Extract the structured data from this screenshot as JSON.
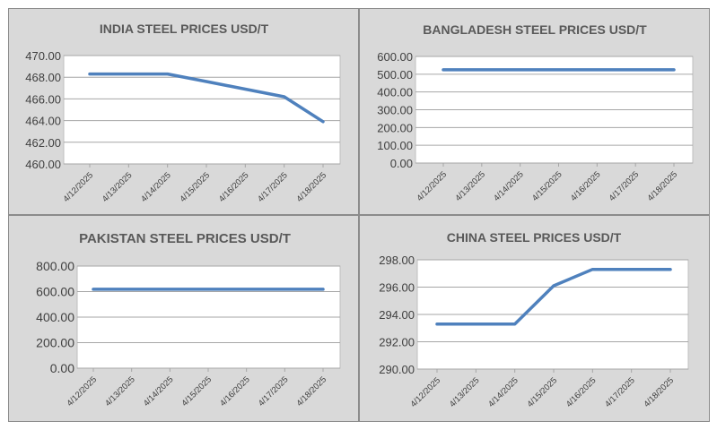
{
  "chart_data": [
    {
      "type": "line",
      "title": "INDIA STEEL PRICES USD/T",
      "categories": [
        "4/12/2025",
        "4/13/2025",
        "4/14/2025",
        "4/15/2025",
        "4/16/2025",
        "4/17/2025",
        "4/18/2025"
      ],
      "series": [
        {
          "values": [
            468.3,
            468.3,
            468.3,
            467.6,
            466.9,
            466.2,
            463.9
          ]
        }
      ],
      "ylim": [
        460,
        470
      ],
      "yticks": [
        "460.00",
        "462.00",
        "464.00",
        "466.00",
        "468.00",
        "470.00"
      ],
      "grid": true,
      "color": "#4f81bd"
    },
    {
      "type": "line",
      "title": "BANGLADESH STEEL PRICES USD/T",
      "categories": [
        "4/12/2025",
        "4/13/2025",
        "4/14/2025",
        "4/15/2025",
        "4/16/2025",
        "4/17/2025",
        "4/18/2025"
      ],
      "series": [
        {
          "values": [
            525,
            525,
            525,
            525,
            525,
            525,
            525
          ]
        }
      ],
      "ylim": [
        0,
        600
      ],
      "yticks": [
        "0.00",
        "100.00",
        "200.00",
        "300.00",
        "400.00",
        "500.00",
        "600.00"
      ],
      "grid": true,
      "color": "#4f81bd"
    },
    {
      "type": "line",
      "title": "PAKISTAN STEEL PRICES USD/T",
      "categories": [
        "4/12/2025",
        "4/13/2025",
        "4/14/2025",
        "4/15/2025",
        "4/16/2025",
        "4/17/2025",
        "4/18/2025"
      ],
      "series": [
        {
          "values": [
            618,
            618,
            618,
            618,
            618,
            618,
            618
          ]
        }
      ],
      "ylim": [
        0,
        800
      ],
      "yticks": [
        "0.00",
        "200.00",
        "400.00",
        "600.00",
        "800.00"
      ],
      "grid": true,
      "color": "#4f81bd"
    },
    {
      "type": "line",
      "title": "CHINA STEEL PRICES USD/T",
      "categories": [
        "4/12/2025",
        "4/13/2025",
        "4/14/2025",
        "4/15/2025",
        "4/16/2025",
        "4/17/2025",
        "4/18/2025"
      ],
      "series": [
        {
          "values": [
            293.3,
            293.3,
            293.3,
            296.1,
            297.3,
            297.3,
            297.3
          ]
        }
      ],
      "ylim": [
        290,
        298
      ],
      "yticks": [
        "290.00",
        "292.00",
        "294.00",
        "296.00",
        "298.00"
      ],
      "grid": true,
      "color": "#4f81bd"
    }
  ]
}
